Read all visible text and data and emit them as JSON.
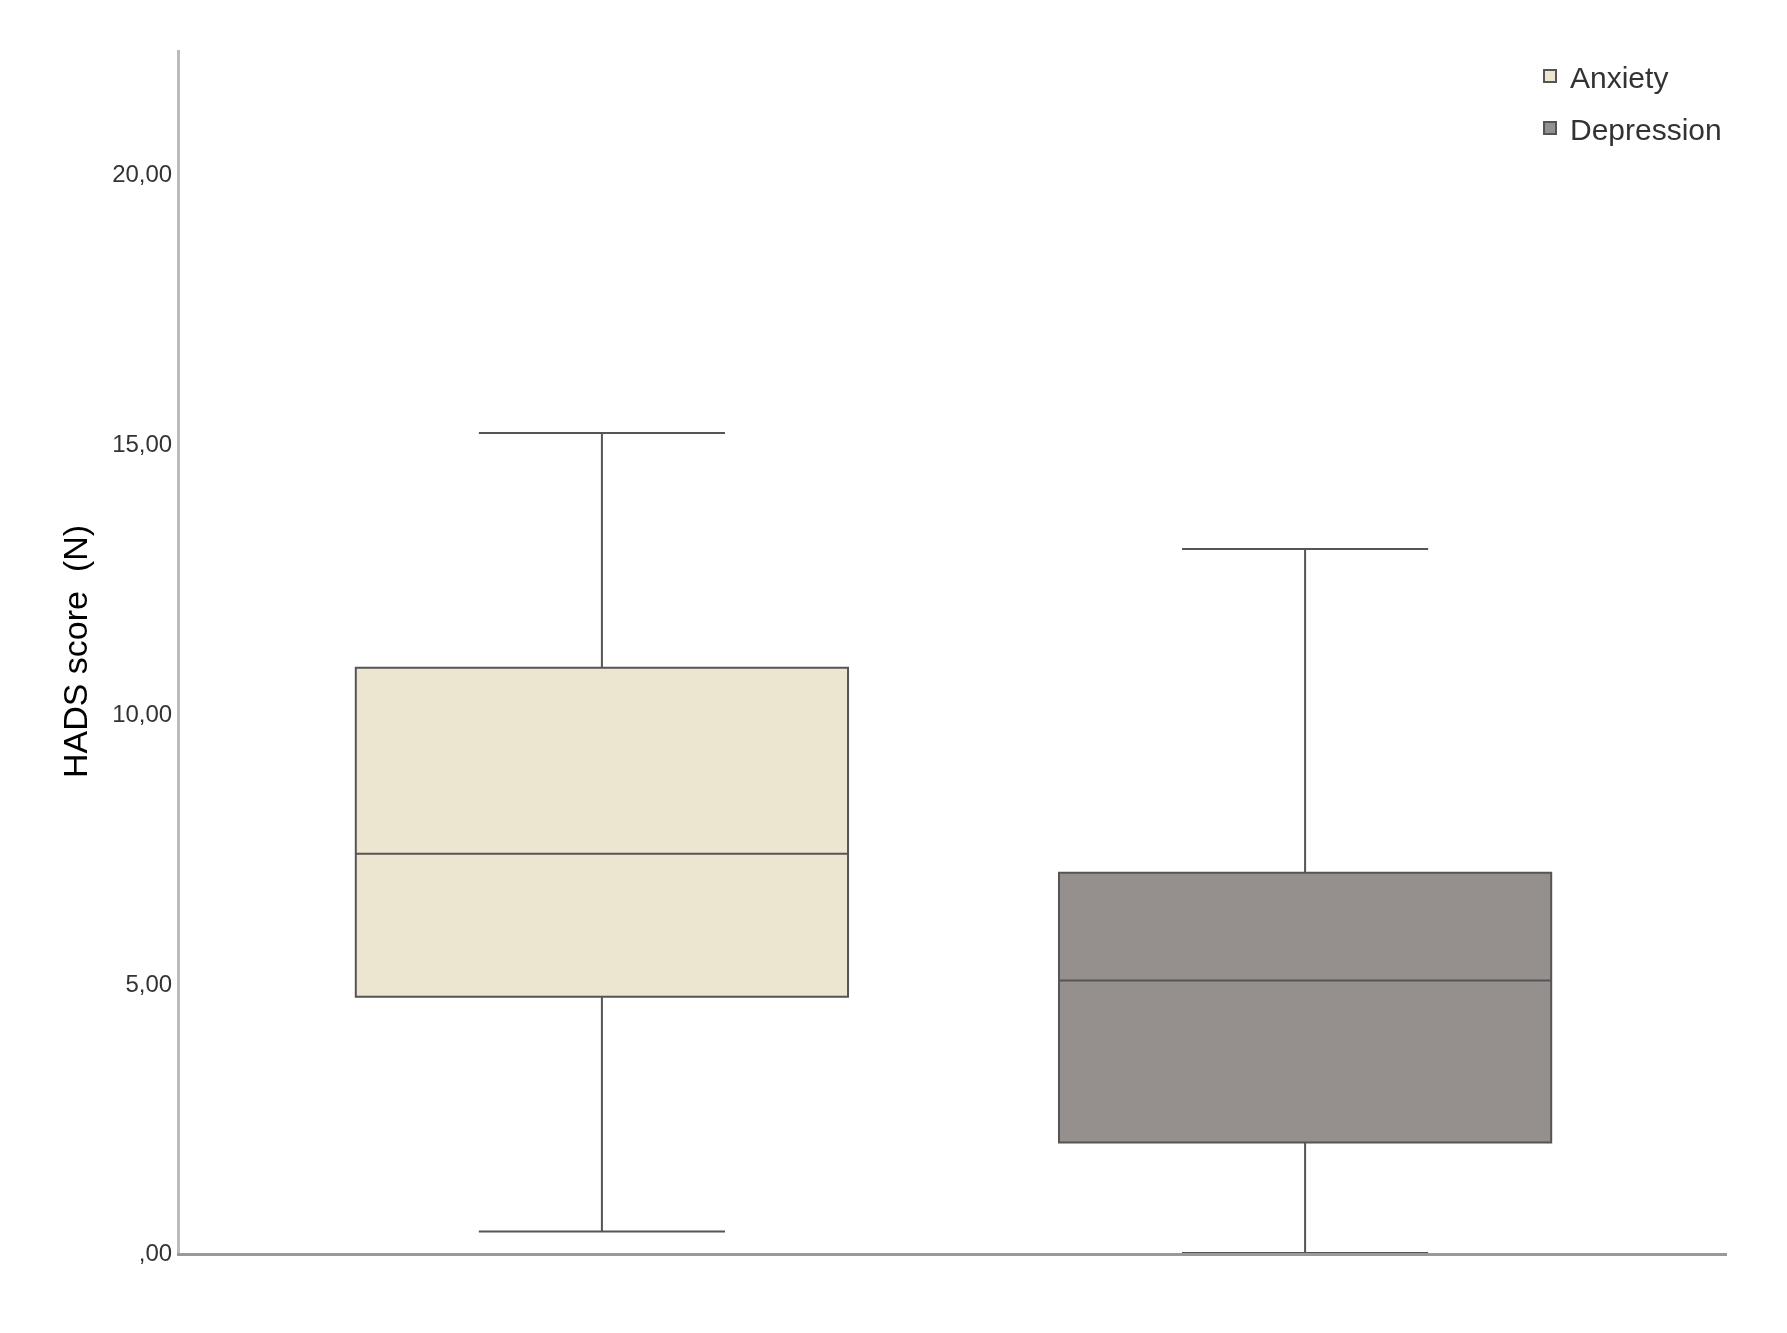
{
  "chart_data": {
    "type": "box",
    "ylabel": "HADS score  (N)",
    "categories": [
      null,
      null
    ],
    "series": [
      {
        "name": "Anxiety",
        "color": "#ece5cf",
        "boxes": [
          {
            "low": 0.4,
            "q1": 4.75,
            "median": 7.4,
            "q3": 10.85,
            "high": 15.2
          },
          null
        ]
      },
      {
        "name": "Depression",
        "color": "#958f8d",
        "boxes": [
          null,
          {
            "low": 0,
            "q1": 2.05,
            "median": 5.05,
            "q3": 7.05,
            "high": 13.05
          }
        ]
      }
    ],
    "ylim": [
      0,
      22.3
    ],
    "yticks": [
      {
        "value": 0,
        "label": ",00"
      },
      {
        "value": 5,
        "label": "5,00"
      },
      {
        "value": 10,
        "label": "10,00"
      },
      {
        "value": 15,
        "label": "15,00"
      },
      {
        "value": 20,
        "label": "20,00"
      }
    ],
    "grid": false,
    "legend": "top right"
  }
}
